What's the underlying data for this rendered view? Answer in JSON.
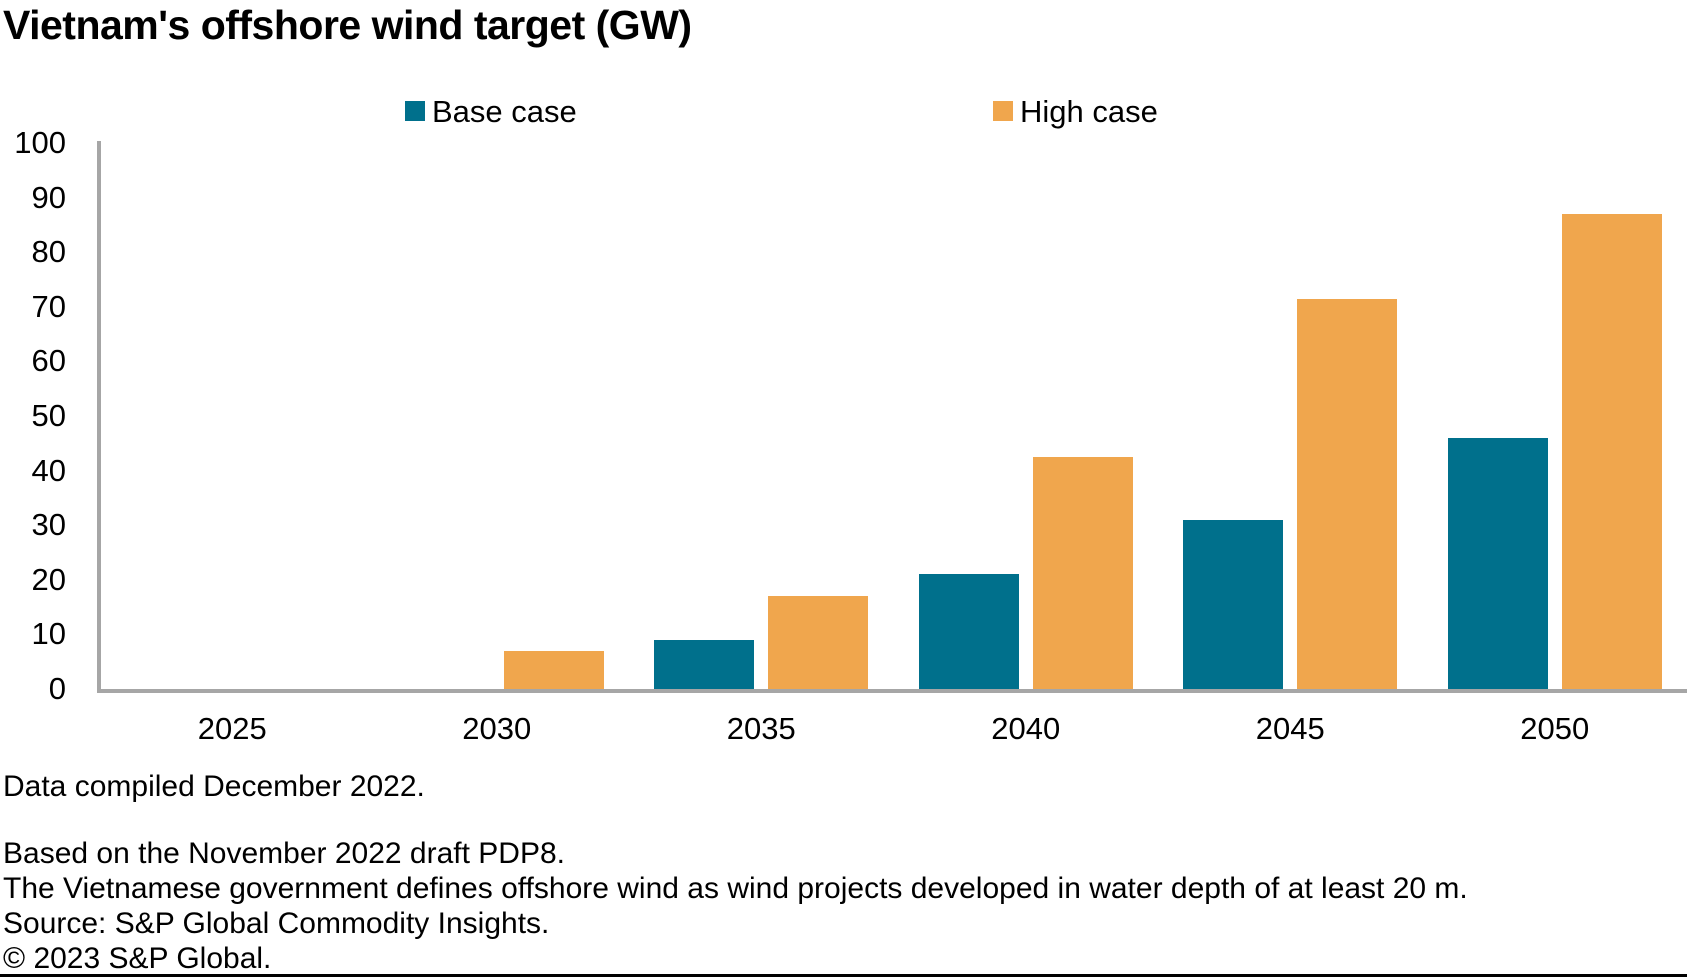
{
  "title": "Vietnam's offshore wind target (GW)",
  "chart_data": {
    "type": "bar",
    "title": "Vietnam's offshore wind target (GW)",
    "categories": [
      "2025",
      "2030",
      "2035",
      "2040",
      "2045",
      "2050"
    ],
    "series": [
      {
        "name": "Base case",
        "color": "#00708c",
        "values": [
          0,
          0,
          9,
          21,
          31,
          46
        ]
      },
      {
        "name": "High case",
        "color": "#f0a64d",
        "values": [
          0,
          7,
          17,
          42.5,
          71.5,
          87
        ]
      }
    ],
    "xlabel": "",
    "ylabel": "",
    "ylim": [
      0,
      100
    ],
    "yticks": [
      0,
      10,
      20,
      30,
      40,
      50,
      60,
      70,
      80,
      90,
      100
    ],
    "grid": false,
    "legend_position": "top",
    "axis_color": "#a6a6a6"
  },
  "notes": {
    "compiled": "Data compiled December 2022.",
    "lines": [
      "Based on the November 2022 draft PDP8.",
      "The Vietnamese government defines offshore wind as wind projects developed in water depth of at least 20 m.",
      "Source: S&P Global Commodity Insights.",
      "© 2023 S&P Global."
    ]
  }
}
